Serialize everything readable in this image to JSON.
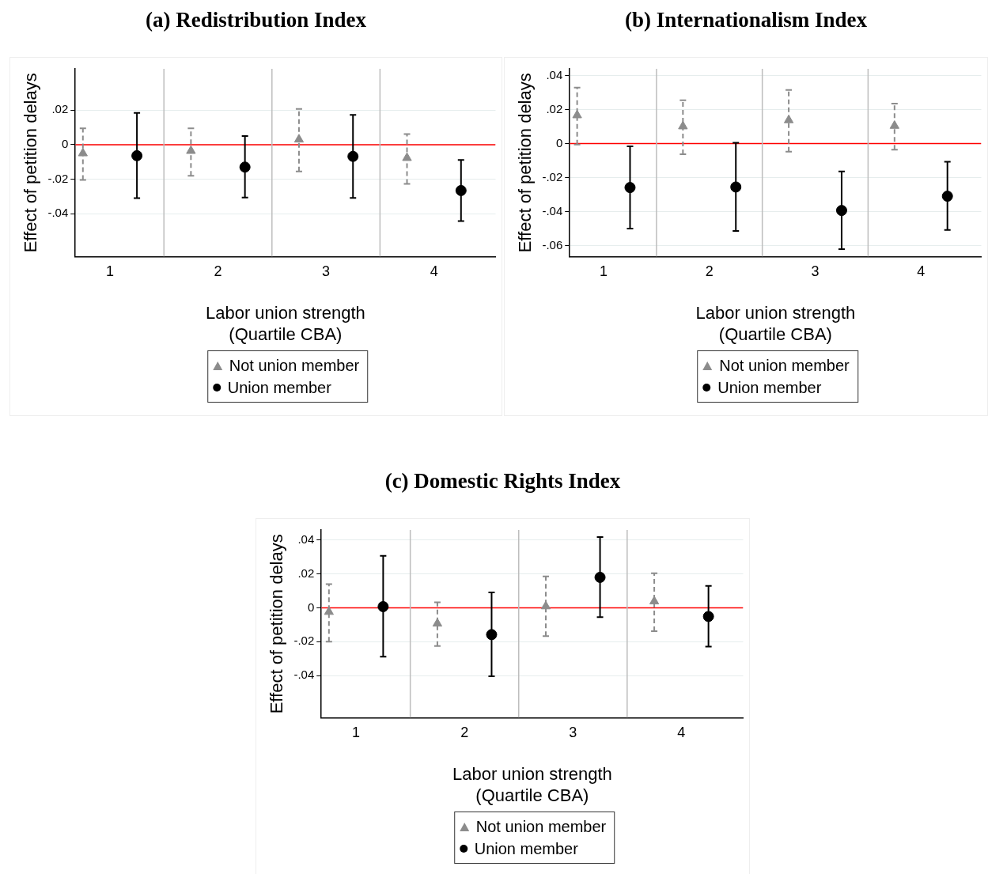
{
  "chart_data": [
    {
      "type": "scatter",
      "title": "(a) Redistribution Index",
      "xlabel": "Labor union strength\n(Quartile CBA)",
      "ylabel": "Effect of petition delays",
      "xlim": [
        0.68,
        4.57
      ],
      "xticks": [
        1,
        2,
        3,
        4
      ],
      "ylim": [
        -0.065,
        0.044
      ],
      "yticks": [
        {
          "value": -0.04,
          "label": "-.04"
        },
        {
          "value": -0.02,
          "label": "-.02"
        },
        {
          "value": 0,
          "label": "0"
        },
        {
          "value": 0.02,
          "label": ".02"
        }
      ],
      "grid": "y",
      "legend": "bottom",
      "ref_lines": [
        {
          "axis": "y",
          "value": 0,
          "color": "#ff0000"
        },
        {
          "axis": "x",
          "value": 1.5,
          "color": "#bdbdbd"
        },
        {
          "axis": "x",
          "value": 2.5,
          "color": "#bdbdbd"
        },
        {
          "axis": "x",
          "value": 3.5,
          "color": "#bdbdbd"
        }
      ],
      "series": [
        {
          "name": "Not union member",
          "color": "#8c8c8c",
          "marker": "triangle",
          "line_style": "dashed",
          "x": [
            0.75,
            1.75,
            2.75,
            3.75
          ],
          "values": [
            -0.005,
            -0.0036,
            0.003,
            -0.0077
          ],
          "errors": [
            [
              -0.0205,
              0.0095
            ],
            [
              -0.018,
              0.0095
            ],
            [
              -0.0155,
              0.0207
            ],
            [
              -0.0227,
              0.0062
            ]
          ]
        },
        {
          "name": "Union member",
          "color": "#000000",
          "marker": "circle",
          "line_style": "solid",
          "x": [
            1.25,
            2.25,
            3.25,
            4.25
          ],
          "values": [
            -0.0064,
            -0.013,
            -0.0068,
            -0.0266
          ],
          "errors": [
            [
              -0.031,
              0.0184
            ],
            [
              -0.0307,
              0.005
            ],
            [
              -0.0309,
              0.0173
            ],
            [
              -0.0443,
              -0.0089
            ]
          ]
        }
      ]
    },
    {
      "type": "scatter",
      "title": "(b) Internationalism Index",
      "xlabel": "Labor union strength\n(Quartile CBA)",
      "ylabel": "Effect of petition delays",
      "xlim": [
        0.68,
        4.57
      ],
      "xticks": [
        1,
        2,
        3,
        4
      ],
      "ylim": [
        -0.0665,
        0.044
      ],
      "yticks": [
        {
          "value": -0.06,
          "label": "-.06"
        },
        {
          "value": -0.04,
          "label": "-.04"
        },
        {
          "value": -0.02,
          "label": "-.02"
        },
        {
          "value": 0,
          "label": "0"
        },
        {
          "value": 0.02,
          "label": ".02"
        },
        {
          "value": 0.04,
          "label": ".04"
        }
      ],
      "grid": "y",
      "legend": "bottom",
      "ref_lines": [
        {
          "axis": "y",
          "value": 0,
          "color": "#ff0000"
        },
        {
          "axis": "x",
          "value": 1.5,
          "color": "#bdbdbd"
        },
        {
          "axis": "x",
          "value": 2.5,
          "color": "#bdbdbd"
        },
        {
          "axis": "x",
          "value": 3.5,
          "color": "#bdbdbd"
        }
      ],
      "series": [
        {
          "name": "Not union member",
          "color": "#8c8c8c",
          "marker": "triangle",
          "line_style": "dashed",
          "x": [
            0.75,
            1.75,
            2.75,
            3.75
          ],
          "values": [
            0.0167,
            0.0102,
            0.0138,
            0.0105
          ],
          "errors": [
            [
              -0.0005,
              0.033
            ],
            [
              -0.0062,
              0.0255
            ],
            [
              -0.0047,
              0.0316
            ],
            [
              -0.0035,
              0.0235
            ]
          ]
        },
        {
          "name": "Union member",
          "color": "#000000",
          "marker": "circle",
          "line_style": "solid",
          "x": [
            1.25,
            2.25,
            3.25,
            4.25
          ],
          "values": [
            -0.0258,
            -0.0255,
            -0.0393,
            -0.0309
          ],
          "errors": [
            [
              -0.05,
              -0.0016
            ],
            [
              -0.0513,
              0.0005
            ],
            [
              -0.062,
              -0.0164
            ],
            [
              -0.0507,
              -0.0107
            ]
          ]
        }
      ]
    },
    {
      "type": "scatter",
      "title": "(c) Domestic Rights Index",
      "xlabel": "Labor union strength\n(Quartile CBA)",
      "ylabel": "Effect of petition delays",
      "xlim": [
        0.68,
        4.57
      ],
      "xticks": [
        1,
        2,
        3,
        4
      ],
      "ylim": [
        -0.065,
        0.046
      ],
      "yticks": [
        {
          "value": -0.04,
          "label": "-.04"
        },
        {
          "value": -0.02,
          "label": "-.02"
        },
        {
          "value": 0,
          "label": "0"
        },
        {
          "value": 0.02,
          "label": ".02"
        },
        {
          "value": 0.04,
          "label": ".04"
        }
      ],
      "grid": "y",
      "legend": "bottom",
      "ref_lines": [
        {
          "axis": "y",
          "value": 0,
          "color": "#ff0000"
        },
        {
          "axis": "x",
          "value": 1.5,
          "color": "#bdbdbd"
        },
        {
          "axis": "x",
          "value": 2.5,
          "color": "#bdbdbd"
        },
        {
          "axis": "x",
          "value": 3.5,
          "color": "#bdbdbd"
        }
      ],
      "series": [
        {
          "name": "Not union member",
          "color": "#8c8c8c",
          "marker": "triangle",
          "line_style": "dashed",
          "x": [
            0.75,
            1.75,
            2.75,
            3.75
          ],
          "values": [
            -0.0024,
            -0.0093,
            0.0009,
            0.0038
          ],
          "errors": [
            [
              -0.02,
              0.014
            ],
            [
              -0.0225,
              0.0033
            ],
            [
              -0.0167,
              0.0185
            ],
            [
              -0.0138,
              0.0204
            ]
          ]
        },
        {
          "name": "Union member",
          "color": "#000000",
          "marker": "circle",
          "line_style": "solid",
          "x": [
            1.25,
            2.25,
            3.25,
            4.25
          ],
          "values": [
            0.0007,
            -0.0158,
            0.018,
            -0.0051
          ],
          "errors": [
            [
              -0.0289,
              0.0307
            ],
            [
              -0.0404,
              0.0091
            ],
            [
              -0.0055,
              0.0418
            ],
            [
              -0.0229,
              0.0129
            ]
          ]
        }
      ]
    }
  ]
}
